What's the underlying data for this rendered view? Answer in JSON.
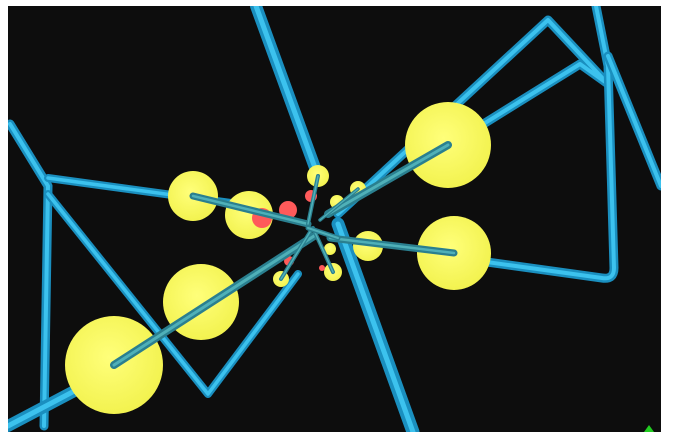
{
  "scene": {
    "background_color": "#0d0d0d",
    "frame_color": "#ffffff",
    "tube_color": "#1ea6d6",
    "tube_highlight": "#58d3f5",
    "rod_color": "#2a7f8f",
    "rod_highlight": "#4fb0b8",
    "sphere_color": "#ffff66",
    "sphere_shade": "#e8e84a",
    "marker_color": "#ff5a5a",
    "axis_indicator_color": "#22cc22",
    "axis_indicator_icon": "green-triangle-icon"
  }
}
